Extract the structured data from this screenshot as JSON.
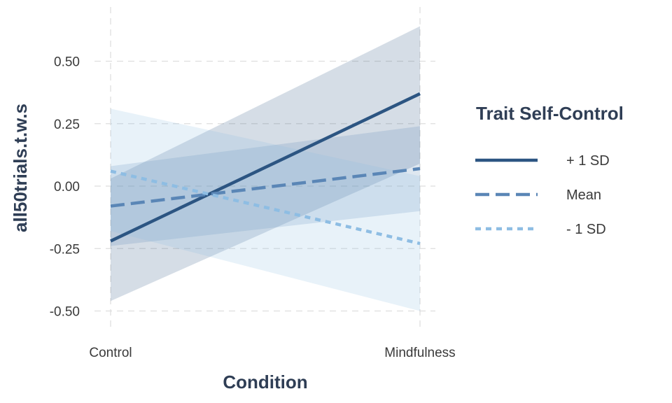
{
  "chart_data": {
    "type": "line",
    "xlabel": "Condition",
    "ylabel": "all50trials.t.w.s",
    "categories": [
      "Control",
      "Mindfulness"
    ],
    "ylim": [
      -0.57,
      0.72
    ],
    "yticks": [
      -0.5,
      -0.25,
      0.0,
      0.25,
      0.5
    ],
    "ytick_labels": [
      "-0.50",
      "-0.25",
      "0.00",
      "0.25",
      "0.50"
    ],
    "grid": true,
    "legend": {
      "title": "Trait Self-Control",
      "placement": "right"
    },
    "series": [
      {
        "name": "+ 1 SD",
        "values": [
          -0.22,
          0.37
        ],
        "ci_lower": [
          -0.46,
          0.09
        ],
        "ci_upper": [
          0.03,
          0.64
        ],
        "color": "#2c5582",
        "dash": "solid"
      },
      {
        "name": "Mean",
        "values": [
          -0.08,
          0.07
        ],
        "ci_lower": [
          -0.24,
          -0.1
        ],
        "ci_upper": [
          0.08,
          0.24
        ],
        "color": "#5a86b6",
        "dash": "dashed"
      },
      {
        "name": "- 1 SD",
        "values": [
          0.06,
          -0.23
        ],
        "ci_lower": [
          -0.18,
          -0.5
        ],
        "ci_upper": [
          0.31,
          0.04
        ],
        "color": "#8ebde3",
        "dash": "dotted"
      }
    ]
  }
}
